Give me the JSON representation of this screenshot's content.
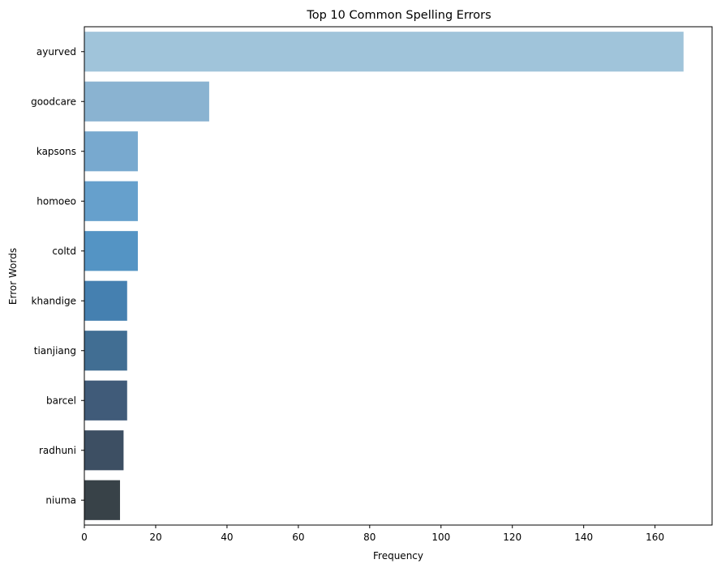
{
  "chart_data": {
    "type": "bar",
    "orientation": "horizontal",
    "title": "Top 10 Common Spelling Errors",
    "xlabel": "Frequency",
    "ylabel": "Error Words",
    "xlim": [
      0,
      176
    ],
    "xticks": [
      0,
      20,
      40,
      60,
      80,
      100,
      120,
      140,
      160
    ],
    "grid": false,
    "categories": [
      "ayurved",
      "goodcare",
      "kapsons",
      "homoeo",
      "coltd",
      "khandige",
      "tianjiang",
      "barcel",
      "radhuni",
      "niuma"
    ],
    "values": [
      168,
      35,
      15,
      15,
      15,
      12,
      12,
      12,
      11,
      10
    ],
    "colors": [
      "#a0c4da",
      "#8ab3d1",
      "#78a9cf",
      "#66a0cc",
      "#5494c4",
      "#4580b0",
      "#416e93",
      "#405b79",
      "#3d4f63",
      "#384248"
    ]
  }
}
